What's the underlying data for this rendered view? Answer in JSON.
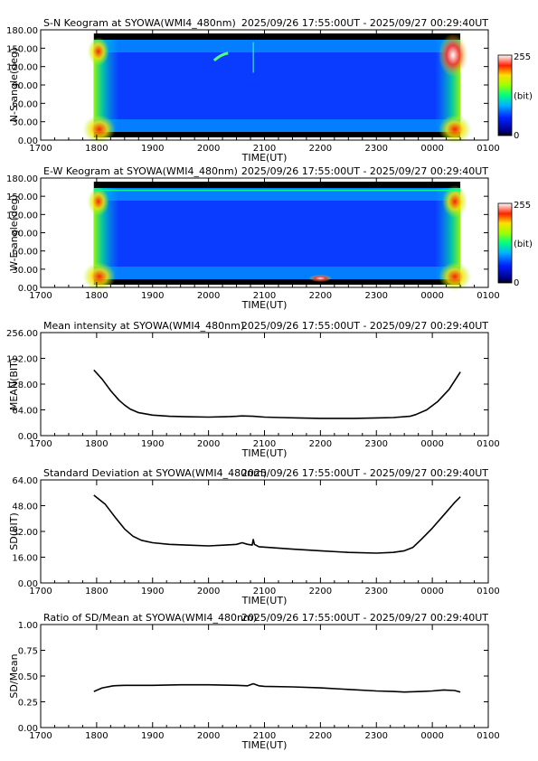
{
  "chart_data": [
    {
      "type": "heatmap",
      "title": "S-N Keogram at SYOWA(WMI4_480nm)",
      "time_range": "2025/09/26 17:55:00UT - 2025/09/27 00:29:40UT",
      "xlabel": "TIME(UT)",
      "ylabel": "N-S angle(deg)",
      "xlim": [
        1700,
        2500
      ],
      "ylim": [
        0,
        180
      ],
      "x_ticks": [
        "1700",
        "1800",
        "1900",
        "2000",
        "2100",
        "2200",
        "2300",
        "0000",
        "0100"
      ],
      "y_ticks": [
        "0.00",
        "30.00",
        "60.00",
        "90.00",
        "120.00",
        "150.00",
        "180.00"
      ],
      "colorbar": {
        "min": "0",
        "max": "255",
        "unit": "(bit)"
      },
      "data_start": 1795,
      "data_end": 2450,
      "features": [
        {
          "kind": "arc",
          "x": [
            2010,
            2035
          ],
          "y": [
            130,
            142
          ]
        },
        {
          "kind": "spike",
          "x": [
            2080
          ],
          "y": [
            160
          ]
        }
      ]
    },
    {
      "type": "heatmap",
      "title": "E-W Keogram at SYOWA(WMI4_480nm)",
      "time_range": "2025/09/26 17:55:00UT - 2025/09/27 00:29:40UT",
      "xlabel": "TIME(UT)",
      "ylabel": "W-E angle(deg)",
      "xlim": [
        1700,
        2500
      ],
      "ylim": [
        0,
        180
      ],
      "x_ticks": [
        "1700",
        "1800",
        "1900",
        "2000",
        "2100",
        "2200",
        "2300",
        "0000",
        "0100"
      ],
      "y_ticks": [
        "0.00",
        "30.00",
        "60.00",
        "90.00",
        "120.00",
        "150.00",
        "180.00"
      ],
      "colorbar": {
        "min": "0",
        "max": "255",
        "unit": "(bit)"
      },
      "data_start": 1795,
      "data_end": 2450,
      "features": [
        {
          "kind": "line",
          "y": 160
        },
        {
          "kind": "hotspot",
          "x": [
            2200
          ],
          "y": [
            15
          ]
        }
      ]
    },
    {
      "type": "line",
      "title": "Mean intensity at SYOWA(WMI4_480nm)",
      "time_range": "2025/09/26 17:55:00UT - 2025/09/27 00:29:40UT",
      "xlabel": "TIME(UT)",
      "ylabel": "MEAN(BIT)",
      "xlim": [
        1700,
        2500
      ],
      "ylim": [
        0,
        256
      ],
      "x_ticks": [
        "1700",
        "1800",
        "1900",
        "2000",
        "2100",
        "2200",
        "2300",
        "0000",
        "0100"
      ],
      "y_ticks": [
        "0.00",
        "64.00",
        "128.00",
        "192.00",
        "256.00"
      ],
      "y_tick_values": [
        0,
        64,
        128,
        192,
        256
      ],
      "series": [
        {
          "x": [
            1795,
            1810,
            1825,
            1840,
            1850,
            1860,
            1875,
            1900,
            1930,
            1960,
            2000,
            2030,
            2050,
            2060,
            2080,
            2100,
            2130,
            2160,
            2200,
            2230,
            2260,
            2300,
            2330,
            2360,
            2370,
            2390,
            2410,
            2430,
            2450
          ],
          "values": [
            163,
            140,
            112,
            88,
            76,
            66,
            57,
            51,
            48,
            47,
            46,
            47,
            48,
            49,
            48,
            46,
            45,
            44,
            43,
            43,
            43,
            44,
            45,
            48,
            52,
            64,
            85,
            115,
            158
          ]
        }
      ]
    },
    {
      "type": "line",
      "title": "Standard Deviation at SYOWA(WMI4_480nm)",
      "time_range": "2025/09/26 17:55:00UT - 2025/09/27 00:29:40UT",
      "xlabel": "TIME(UT)",
      "ylabel": "SD(BIT)",
      "xlim": [
        1700,
        2500
      ],
      "ylim": [
        0,
        64
      ],
      "x_ticks": [
        "1700",
        "1800",
        "1900",
        "2000",
        "2100",
        "2200",
        "2300",
        "0000",
        "0100"
      ],
      "y_ticks": [
        "0.00",
        "16.00",
        "32.00",
        "48.00",
        "64.00"
      ],
      "y_tick_values": [
        0,
        16,
        32,
        48,
        64
      ],
      "series": [
        {
          "x": [
            1795,
            1815,
            1835,
            1850,
            1865,
            1880,
            1900,
            1930,
            1960,
            2000,
            2030,
            2050,
            2060,
            2070,
            2078,
            2080,
            2082,
            2090,
            2110,
            2150,
            2200,
            2250,
            2300,
            2330,
            2350,
            2365,
            2380,
            2400,
            2420,
            2440,
            2450
          ],
          "values": [
            54.5,
            49,
            40,
            33.5,
            29,
            26.5,
            25,
            24,
            23.5,
            23,
            23.5,
            24,
            25,
            24,
            23.5,
            27,
            24,
            22.5,
            22,
            21,
            20,
            19,
            18.5,
            19,
            20,
            22,
            27,
            34,
            42,
            50,
            53.5
          ]
        }
      ]
    },
    {
      "type": "line",
      "title": "Ratio of SD/Mean at SYOWA(WMI4_480nm)",
      "time_range": "2025/09/26 17:55:00UT - 2025/09/27 00:29:40UT",
      "xlabel": "TIME(UT)",
      "ylabel": "SD/Mean",
      "xlim": [
        1700,
        2500
      ],
      "ylim": [
        0,
        1
      ],
      "x_ticks": [
        "1700",
        "1800",
        "1900",
        "2000",
        "2100",
        "2200",
        "2300",
        "0000",
        "0100"
      ],
      "y_ticks": [
        "0.00",
        "0.25",
        "0.50",
        "0.75",
        "1.00"
      ],
      "y_tick_values": [
        0,
        0.25,
        0.5,
        0.75,
        1
      ],
      "series": [
        {
          "x": [
            1795,
            1810,
            1830,
            1850,
            1900,
            1950,
            2000,
            2050,
            2070,
            2080,
            2090,
            2100,
            2150,
            2200,
            2250,
            2300,
            2330,
            2350,
            2380,
            2400,
            2420,
            2440,
            2450
          ],
          "values": [
            0.35,
            0.385,
            0.405,
            0.41,
            0.41,
            0.415,
            0.415,
            0.41,
            0.405,
            0.425,
            0.405,
            0.4,
            0.395,
            0.385,
            0.37,
            0.355,
            0.35,
            0.345,
            0.35,
            0.355,
            0.365,
            0.36,
            0.345
          ]
        }
      ]
    }
  ]
}
